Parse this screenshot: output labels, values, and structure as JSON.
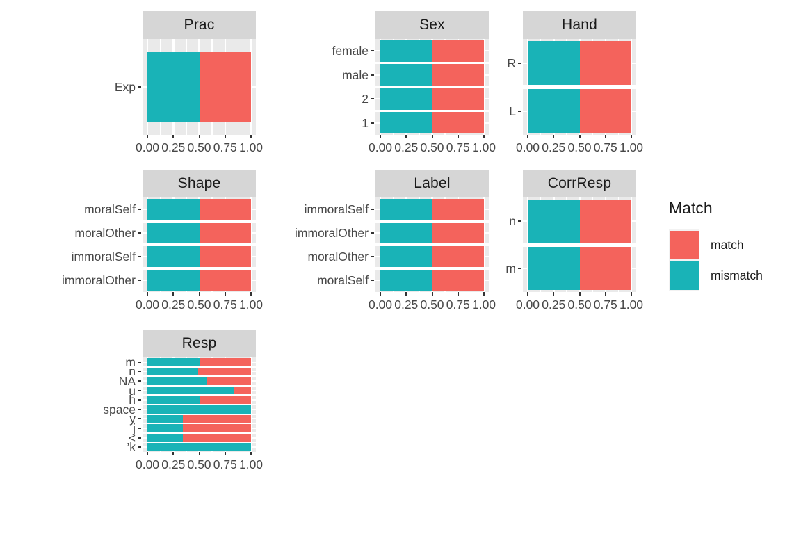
{
  "legend": {
    "title": "Match",
    "items": [
      {
        "label": "match",
        "color": "#F4635C"
      },
      {
        "label": "mismatch",
        "color": "#19B3B7"
      }
    ]
  },
  "colors": {
    "match": "#F4635C",
    "mismatch": "#19B3B7",
    "panel_bg": "#EAEAEA",
    "strip_bg": "#D6D6D6",
    "strip_text": "#1A1A1A",
    "grid": "#FFFFFF",
    "axis_text": "#474747",
    "tick_mark": "#333333",
    "legend_key_bg": "#F2F2F2"
  },
  "chart_data": {
    "type": "bar",
    "stacked": true,
    "orientation": "horizontal",
    "legend_position": "right",
    "x_axis": {
      "tick_labels": [
        "0.00",
        "0.25",
        "0.50",
        "0.75",
        "1.00"
      ],
      "tick_values": [
        0,
        0.25,
        0.5,
        0.75,
        1
      ],
      "range": [
        0,
        1
      ]
    },
    "series_order": [
      "mismatch",
      "match"
    ],
    "facets": [
      {
        "title": "Prac",
        "grid_row": 0,
        "grid_col": 0,
        "categories": [
          "Exp"
        ],
        "series": {
          "mismatch": [
            0.5
          ],
          "match": [
            0.5
          ]
        }
      },
      {
        "title": "Sex",
        "grid_row": 0,
        "grid_col": 1,
        "categories": [
          "female",
          "male",
          "2",
          "1"
        ],
        "series": {
          "mismatch": [
            0.5,
            0.5,
            0.5,
            0.5
          ],
          "match": [
            0.5,
            0.5,
            0.5,
            0.5
          ]
        }
      },
      {
        "title": "Hand",
        "grid_row": 0,
        "grid_col": 2,
        "categories": [
          "R",
          "L"
        ],
        "series": {
          "mismatch": [
            0.5,
            0.5
          ],
          "match": [
            0.5,
            0.5
          ]
        }
      },
      {
        "title": "Shape",
        "grid_row": 1,
        "grid_col": 0,
        "categories": [
          "moralSelf",
          "moralOther",
          "immoralSelf",
          "immoralOther"
        ],
        "series": {
          "mismatch": [
            0.5,
            0.5,
            0.5,
            0.5
          ],
          "match": [
            0.5,
            0.5,
            0.5,
            0.5
          ]
        }
      },
      {
        "title": "Label",
        "grid_row": 1,
        "grid_col": 1,
        "categories": [
          "immoralSelf",
          "immoralOther",
          "moralOther",
          "moralSelf"
        ],
        "series": {
          "mismatch": [
            0.5,
            0.5,
            0.5,
            0.5
          ],
          "match": [
            0.5,
            0.5,
            0.5,
            0.5
          ]
        }
      },
      {
        "title": "CorrResp",
        "grid_row": 1,
        "grid_col": 2,
        "categories": [
          "n",
          "m"
        ],
        "series": {
          "mismatch": [
            0.5,
            0.5
          ],
          "match": [
            0.5,
            0.5
          ]
        }
      },
      {
        "title": "Resp",
        "grid_row": 2,
        "grid_col": 0,
        "categories": [
          "m",
          "n",
          "NA",
          "u",
          "h",
          "space",
          "y",
          "j",
          "<",
          "’k"
        ],
        "series": {
          "mismatch": [
            0.51,
            0.49,
            0.58,
            0.84,
            0.5,
            1.0,
            0.34,
            0.34,
            0.34,
            1.0
          ],
          "match": [
            0.49,
            0.51,
            0.42,
            0.16,
            0.5,
            0.0,
            0.66,
            0.66,
            0.66,
            0.0
          ]
        }
      }
    ]
  }
}
